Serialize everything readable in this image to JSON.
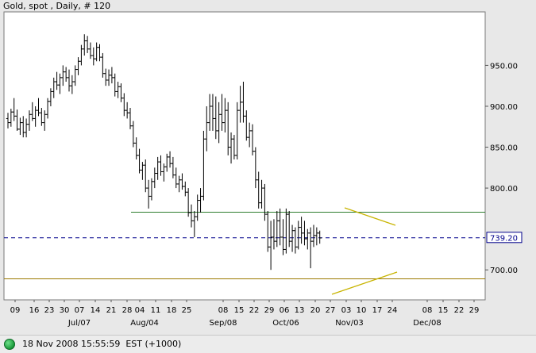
{
  "chart_data": {
    "type": "ohlc",
    "title": "Gold, spot , Daily, # 120",
    "ylim": [
      675,
      995
    ],
    "y_ticks": [
      "950.00",
      "900.00",
      "850.00",
      "800.00",
      "700.00"
    ],
    "y_tick_values": [
      950,
      900,
      850,
      800,
      700
    ],
    "current_price_label": "739.20",
    "current_price": 739.2,
    "x_day_labels": [
      "09",
      "16",
      "23",
      "30",
      "07",
      "14",
      "21",
      "28",
      "04",
      "11",
      "18",
      "25",
      "08",
      "15",
      "22",
      "29",
      "06",
      "13",
      "20",
      "27",
      "03",
      "10",
      "17",
      "24",
      "08",
      "15",
      "22",
      "29"
    ],
    "x_month_labels": [
      "Jul/07",
      "Aug/04",
      "Sep/08",
      "Oct/06",
      "Nov/03",
      "Dec/08"
    ],
    "bars": [
      {
        "o": 885,
        "h": 892,
        "l": 873,
        "c": 880
      },
      {
        "o": 880,
        "h": 897,
        "l": 875,
        "c": 893
      },
      {
        "o": 893,
        "h": 910,
        "l": 882,
        "c": 888
      },
      {
        "o": 888,
        "h": 896,
        "l": 870,
        "c": 872
      },
      {
        "o": 872,
        "h": 886,
        "l": 865,
        "c": 880
      },
      {
        "o": 880,
        "h": 888,
        "l": 862,
        "c": 868
      },
      {
        "o": 868,
        "h": 885,
        "l": 862,
        "c": 878
      },
      {
        "o": 878,
        "h": 895,
        "l": 870,
        "c": 890
      },
      {
        "o": 890,
        "h": 905,
        "l": 882,
        "c": 885
      },
      {
        "o": 885,
        "h": 900,
        "l": 875,
        "c": 895
      },
      {
        "o": 895,
        "h": 910,
        "l": 888,
        "c": 892
      },
      {
        "o": 892,
        "h": 898,
        "l": 876,
        "c": 880
      },
      {
        "o": 880,
        "h": 895,
        "l": 870,
        "c": 890
      },
      {
        "o": 890,
        "h": 910,
        "l": 885,
        "c": 906
      },
      {
        "o": 906,
        "h": 922,
        "l": 900,
        "c": 918
      },
      {
        "o": 918,
        "h": 935,
        "l": 910,
        "c": 930
      },
      {
        "o": 930,
        "h": 942,
        "l": 920,
        "c": 926
      },
      {
        "o": 926,
        "h": 940,
        "l": 915,
        "c": 935
      },
      {
        "o": 935,
        "h": 950,
        "l": 925,
        "c": 942
      },
      {
        "o": 942,
        "h": 948,
        "l": 930,
        "c": 935
      },
      {
        "o": 935,
        "h": 945,
        "l": 918,
        "c": 925
      },
      {
        "o": 925,
        "h": 938,
        "l": 915,
        "c": 930
      },
      {
        "o": 930,
        "h": 950,
        "l": 925,
        "c": 945
      },
      {
        "o": 945,
        "h": 960,
        "l": 938,
        "c": 955
      },
      {
        "o": 955,
        "h": 975,
        "l": 950,
        "c": 970
      },
      {
        "o": 970,
        "h": 988,
        "l": 962,
        "c": 980
      },
      {
        "o": 980,
        "h": 986,
        "l": 965,
        "c": 970
      },
      {
        "o": 970,
        "h": 978,
        "l": 958,
        "c": 962
      },
      {
        "o": 962,
        "h": 972,
        "l": 950,
        "c": 958
      },
      {
        "o": 958,
        "h": 978,
        "l": 955,
        "c": 972
      },
      {
        "o": 972,
        "h": 976,
        "l": 955,
        "c": 960
      },
      {
        "o": 960,
        "h": 965,
        "l": 935,
        "c": 940
      },
      {
        "o": 940,
        "h": 946,
        "l": 925,
        "c": 932
      },
      {
        "o": 932,
        "h": 945,
        "l": 925,
        "c": 938
      },
      {
        "o": 938,
        "h": 948,
        "l": 928,
        "c": 935
      },
      {
        "o": 935,
        "h": 940,
        "l": 912,
        "c": 918
      },
      {
        "o": 918,
        "h": 930,
        "l": 910,
        "c": 924
      },
      {
        "o": 924,
        "h": 928,
        "l": 905,
        "c": 910
      },
      {
        "o": 910,
        "h": 916,
        "l": 888,
        "c": 895
      },
      {
        "o": 895,
        "h": 905,
        "l": 885,
        "c": 892
      },
      {
        "o": 892,
        "h": 898,
        "l": 872,
        "c": 876
      },
      {
        "o": 876,
        "h": 882,
        "l": 850,
        "c": 855
      },
      {
        "o": 855,
        "h": 862,
        "l": 835,
        "c": 840
      },
      {
        "o": 840,
        "h": 848,
        "l": 818,
        "c": 822
      },
      {
        "o": 822,
        "h": 832,
        "l": 810,
        "c": 828
      },
      {
        "o": 828,
        "h": 835,
        "l": 795,
        "c": 800
      },
      {
        "o": 800,
        "h": 810,
        "l": 775,
        "c": 790
      },
      {
        "o": 790,
        "h": 812,
        "l": 785,
        "c": 808
      },
      {
        "o": 808,
        "h": 825,
        "l": 800,
        "c": 818
      },
      {
        "o": 818,
        "h": 838,
        "l": 810,
        "c": 832
      },
      {
        "o": 832,
        "h": 840,
        "l": 815,
        "c": 820
      },
      {
        "o": 820,
        "h": 830,
        "l": 808,
        "c": 826
      },
      {
        "o": 826,
        "h": 842,
        "l": 820,
        "c": 838
      },
      {
        "o": 838,
        "h": 845,
        "l": 825,
        "c": 830
      },
      {
        "o": 830,
        "h": 838,
        "l": 812,
        "c": 816
      },
      {
        "o": 816,
        "h": 825,
        "l": 800,
        "c": 805
      },
      {
        "o": 805,
        "h": 815,
        "l": 795,
        "c": 810
      },
      {
        "o": 810,
        "h": 818,
        "l": 798,
        "c": 802
      },
      {
        "o": 802,
        "h": 808,
        "l": 790,
        "c": 795
      },
      {
        "o": 795,
        "h": 800,
        "l": 765,
        "c": 770
      },
      {
        "o": 770,
        "h": 780,
        "l": 752,
        "c": 760
      },
      {
        "o": 760,
        "h": 772,
        "l": 740,
        "c": 765
      },
      {
        "o": 765,
        "h": 792,
        "l": 760,
        "c": 785
      },
      {
        "o": 785,
        "h": 800,
        "l": 770,
        "c": 790
      },
      {
        "o": 790,
        "h": 870,
        "l": 785,
        "c": 860
      },
      {
        "o": 860,
        "h": 900,
        "l": 845,
        "c": 880
      },
      {
        "o": 880,
        "h": 915,
        "l": 870,
        "c": 900
      },
      {
        "o": 900,
        "h": 915,
        "l": 870,
        "c": 885
      },
      {
        "o": 885,
        "h": 912,
        "l": 860,
        "c": 870
      },
      {
        "o": 870,
        "h": 905,
        "l": 855,
        "c": 890
      },
      {
        "o": 890,
        "h": 915,
        "l": 870,
        "c": 880
      },
      {
        "o": 880,
        "h": 910,
        "l": 868,
        "c": 895
      },
      {
        "o": 895,
        "h": 905,
        "l": 840,
        "c": 850
      },
      {
        "o": 850,
        "h": 868,
        "l": 830,
        "c": 860
      },
      {
        "o": 860,
        "h": 865,
        "l": 835,
        "c": 840
      },
      {
        "o": 840,
        "h": 905,
        "l": 835,
        "c": 895
      },
      {
        "o": 895,
        "h": 925,
        "l": 880,
        "c": 905
      },
      {
        "o": 905,
        "h": 930,
        "l": 880,
        "c": 888
      },
      {
        "o": 888,
        "h": 895,
        "l": 858,
        "c": 862
      },
      {
        "o": 862,
        "h": 880,
        "l": 850,
        "c": 870
      },
      {
        "o": 870,
        "h": 878,
        "l": 840,
        "c": 845
      },
      {
        "o": 845,
        "h": 850,
        "l": 800,
        "c": 810
      },
      {
        "o": 810,
        "h": 820,
        "l": 775,
        "c": 782
      },
      {
        "o": 782,
        "h": 810,
        "l": 775,
        "c": 800
      },
      {
        "o": 800,
        "h": 805,
        "l": 760,
        "c": 768
      },
      {
        "o": 768,
        "h": 772,
        "l": 722,
        "c": 728
      },
      {
        "o": 728,
        "h": 760,
        "l": 700,
        "c": 740
      },
      {
        "o": 740,
        "h": 762,
        "l": 725,
        "c": 735
      },
      {
        "o": 735,
        "h": 772,
        "l": 728,
        "c": 760
      },
      {
        "o": 760,
        "h": 775,
        "l": 730,
        "c": 740
      },
      {
        "o": 740,
        "h": 762,
        "l": 718,
        "c": 725
      },
      {
        "o": 725,
        "h": 775,
        "l": 720,
        "c": 768
      },
      {
        "o": 768,
        "h": 772,
        "l": 728,
        "c": 735
      },
      {
        "o": 735,
        "h": 755,
        "l": 722,
        "c": 748
      },
      {
        "o": 748,
        "h": 752,
        "l": 720,
        "c": 728
      },
      {
        "o": 728,
        "h": 760,
        "l": 725,
        "c": 752
      },
      {
        "o": 752,
        "h": 765,
        "l": 732,
        "c": 745
      },
      {
        "o": 745,
        "h": 760,
        "l": 730,
        "c": 738
      },
      {
        "o": 738,
        "h": 750,
        "l": 725,
        "c": 745
      },
      {
        "o": 745,
        "h": 752,
        "l": 702,
        "c": 735
      },
      {
        "o": 735,
        "h": 755,
        "l": 728,
        "c": 742
      },
      {
        "o": 742,
        "h": 752,
        "l": 730,
        "c": 745
      },
      {
        "o": 745,
        "h": 748,
        "l": 732,
        "c": 739
      }
    ]
  },
  "status": {
    "timestamp": "18 Nov 2008 15:55:59  EST (+1000)"
  },
  "colors": {
    "background": "#ffffff",
    "bars": "#000000",
    "support_line": "#2e7d2e",
    "bottom_line": "#9b7a00",
    "triangle_lines": "#c8b400",
    "price_line": "#00008b",
    "status_dot": "#1a9a3a"
  }
}
